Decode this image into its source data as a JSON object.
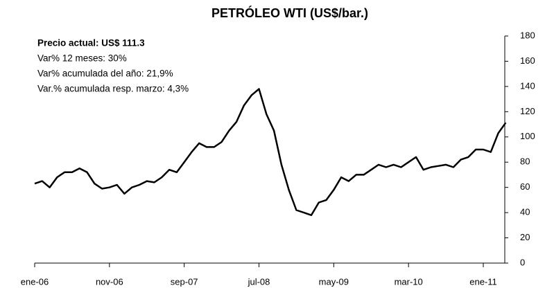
{
  "chart_data": {
    "type": "line",
    "title": "PETRÓLEO WTI (US$/bar.)",
    "annotations": [
      "Precio actual: US$ 111.3",
      "Var% 12 meses:  30%",
      "Var% acumulada del año: 21,9%",
      "Var.% acumulada resp. marzo: 4,3%"
    ],
    "categories": [
      "ene-06",
      null,
      null,
      null,
      null,
      null,
      null,
      null,
      null,
      null,
      "nov-06",
      null,
      null,
      null,
      null,
      null,
      null,
      null,
      null,
      null,
      "sep-07",
      null,
      null,
      null,
      null,
      null,
      null,
      null,
      null,
      null,
      "jul-08",
      null,
      null,
      null,
      null,
      null,
      null,
      null,
      null,
      null,
      "may-09",
      null,
      null,
      null,
      null,
      null,
      null,
      null,
      null,
      null,
      "mar-10",
      null,
      null,
      null,
      null,
      null,
      null,
      null,
      null,
      null,
      "ene-11",
      null,
      null,
      null
    ],
    "values": [
      63,
      65,
      60,
      68,
      72,
      72,
      75,
      72,
      63,
      59,
      60,
      62,
      55,
      60,
      62,
      65,
      64,
      68,
      74,
      72,
      80,
      88,
      95,
      92,
      92,
      96,
      105,
      112,
      125,
      133,
      138,
      118,
      105,
      78,
      58,
      42,
      40,
      38,
      48,
      50,
      58,
      68,
      65,
      70,
      70,
      74,
      78,
      76,
      78,
      76,
      80,
      84,
      74,
      76,
      77,
      78,
      76,
      82,
      84,
      90,
      90,
      88,
      103,
      111.3
    ],
    "color": "#000000",
    "ylim": [
      0,
      180
    ],
    "yticks": [
      0,
      20,
      40,
      60,
      80,
      100,
      120,
      140,
      160,
      180
    ],
    "y_axis_side": "right",
    "grid": false
  }
}
